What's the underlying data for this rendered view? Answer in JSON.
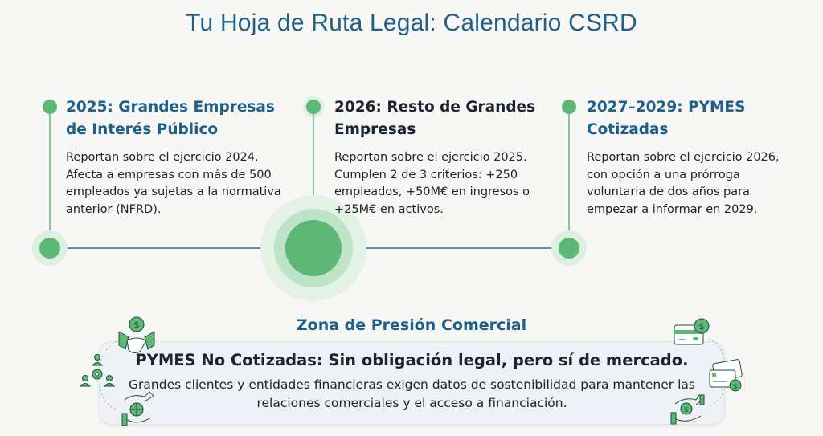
{
  "title": "Tu Hoja de Ruta Legal: Calendario CSRD",
  "colors": {
    "accent_green": "#5cb874",
    "title_blue": "#1f5f8b",
    "heading_dark": "#1c2333"
  },
  "timeline": [
    {
      "heading": "2025: Grandes Empresas de Interés Público",
      "body": "Reportan sobre el ejercicio 2024. Afecta a empresas con más de 500 empleados ya sujetas a la normativa anterior (NFRD).",
      "highlighted": false
    },
    {
      "heading": "2026: Resto de Grandes Empresas",
      "body": "Reportan sobre el ejercicio 2025. Cumplen 2 de 3 criterios: +250 empleados, +50M€ en ingresos o +25M€ en activos.",
      "highlighted": true
    },
    {
      "heading": "2027–2029: PYMES Cotizadas",
      "body": "Reportan sobre el ejercicio 2026, con opción a una prórroga voluntaria de dos años para empezar a informar en 2029.",
      "highlighted": false
    }
  ],
  "zone": {
    "title": "Zona de Presión Comercial",
    "heading": "PYMES No Cotizadas: Sin obligación legal, pero sí de mercado.",
    "body": "Grandes clientes y entidades financieras exigen datos de sostenibilidad para mantener las relaciones comerciales y el acceso a financiación.",
    "icons": [
      "handshake-dollar-icon",
      "people-cycle-gear-icon",
      "hands-globe-icon",
      "credit-card-dollar-icon",
      "cards-dollar-icon",
      "hands-dollar-icon"
    ]
  }
}
